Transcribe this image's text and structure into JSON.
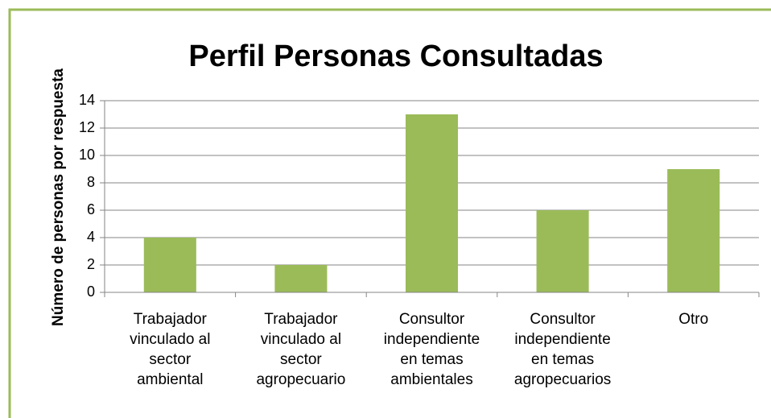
{
  "chart_data": {
    "type": "bar",
    "title": "Perfil Personas Consultadas",
    "y_label": "Número de personas por respuesta",
    "categories": [
      [
        "Trabajador",
        "vinculado al",
        "sector",
        "ambiental"
      ],
      [
        "Trabajador",
        "vinculado al",
        "sector",
        "agropecuario"
      ],
      [
        "Consultor",
        "independiente",
        "en temas",
        "ambientales"
      ],
      [
        "Consultor",
        "independiente",
        "en temas",
        "agropecuarios"
      ],
      [
        "Otro"
      ]
    ],
    "values": [
      4,
      2,
      13,
      6,
      9
    ],
    "color": "#9bbb59",
    "ylim": [
      0,
      14
    ],
    "yticks": [
      0,
      2,
      4,
      6,
      8,
      10,
      12,
      14
    ],
    "grid": true
  }
}
